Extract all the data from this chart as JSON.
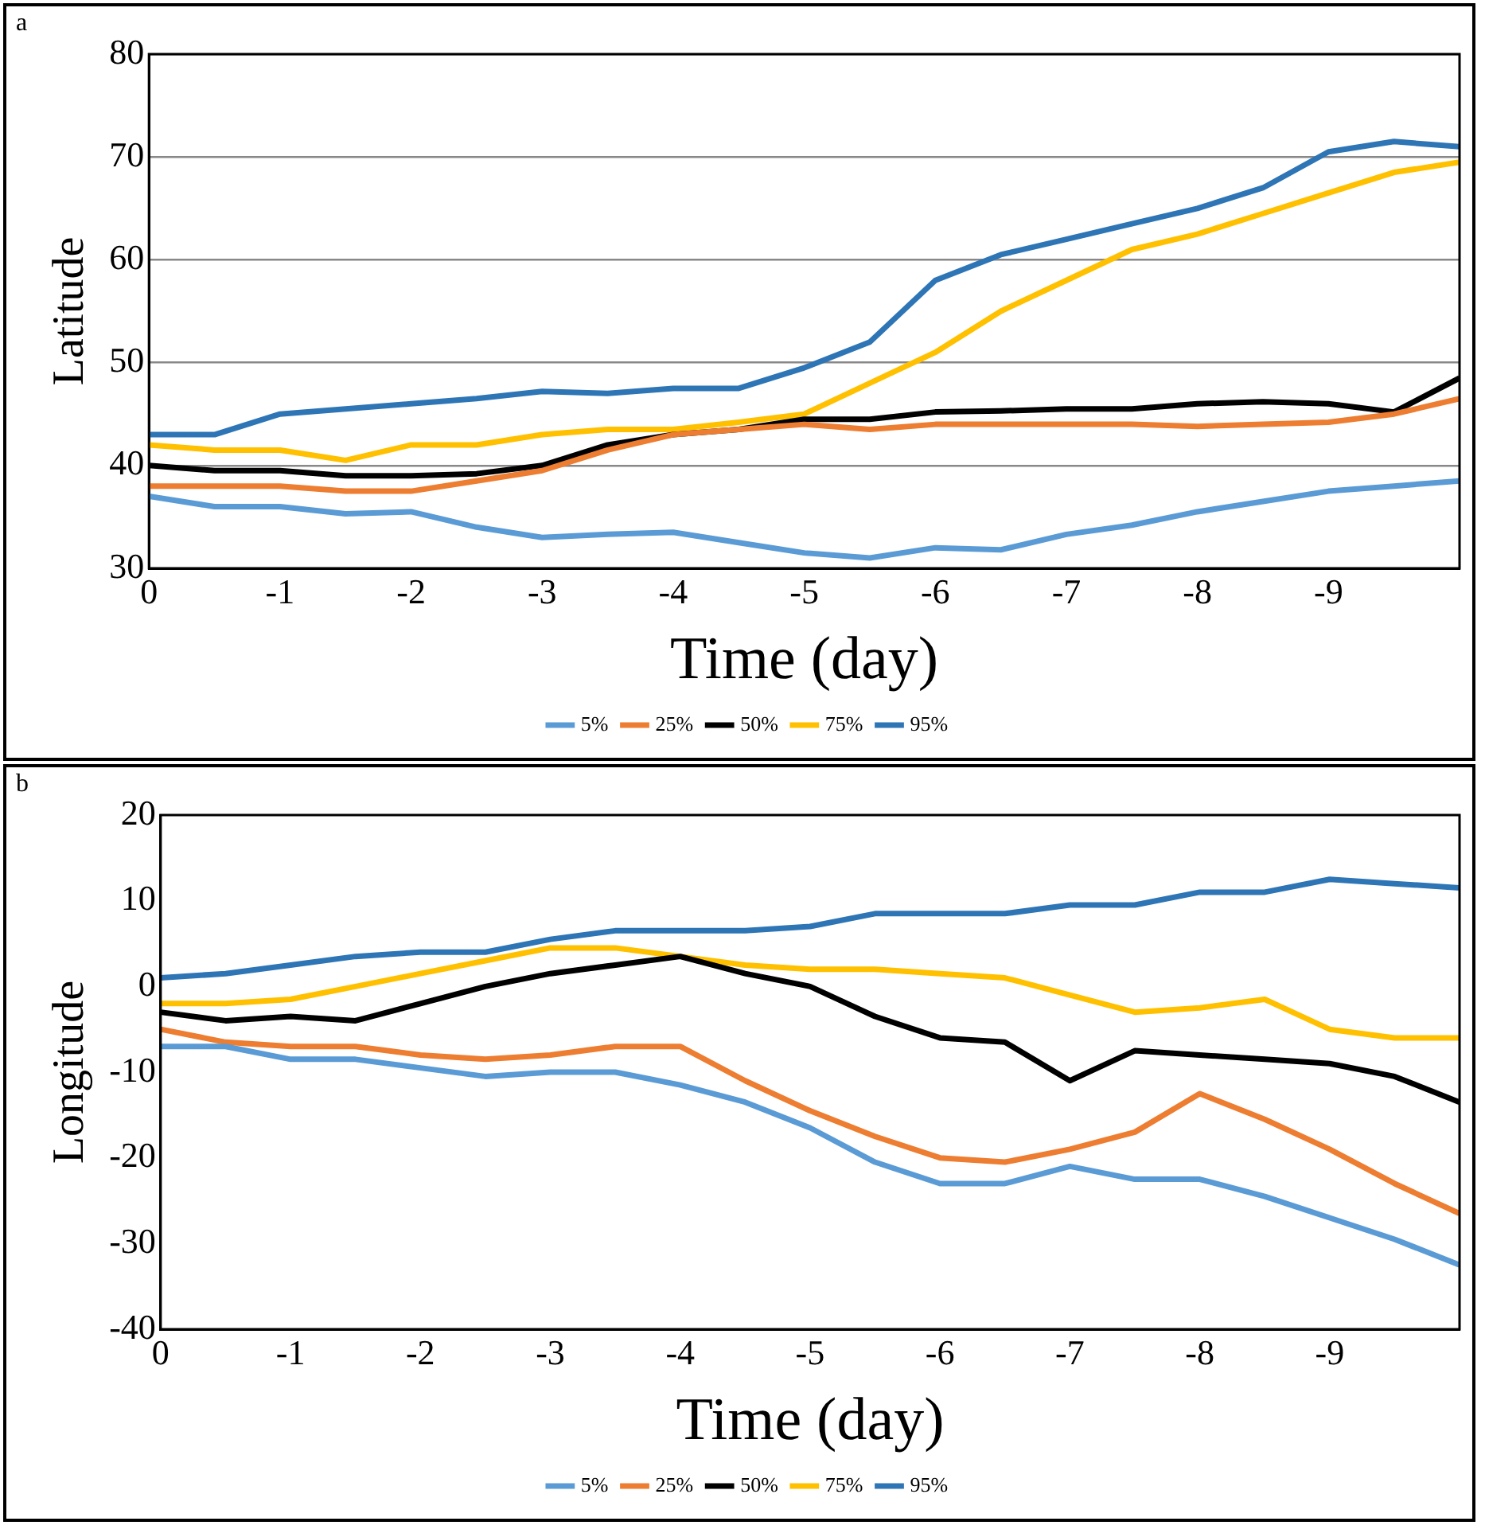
{
  "chart_data": [
    {
      "type": "line",
      "annotations": [
        "a"
      ],
      "xlabel": "Time (day)",
      "ylabel": "Latitude",
      "xlim": [
        0,
        -10
      ],
      "xticks": [
        0,
        -1,
        -2,
        -3,
        -4,
        -5,
        -6,
        -7,
        -8,
        -9
      ],
      "ylim": [
        30,
        80
      ],
      "yticks": [
        30,
        40,
        50,
        60,
        70,
        80
      ],
      "grid": "y",
      "legend": "bottom",
      "marker": "none",
      "line_style": "solid",
      "x": [
        0,
        -0.5,
        -1,
        -1.5,
        -2,
        -2.5,
        -3,
        -3.5,
        -4,
        -4.5,
        -5,
        -5.5,
        -6,
        -6.5,
        -7,
        -7.5,
        -8,
        -8.5,
        -9,
        -9.5,
        -10
      ],
      "series": [
        {
          "name": "5%",
          "color": "#5b9bd5",
          "values": [
            37,
            36,
            36,
            35.3,
            35.5,
            34,
            33,
            33.3,
            33.5,
            32.5,
            31.5,
            31,
            32,
            31.8,
            33.3,
            34.2,
            35.5,
            36.5,
            37.5,
            38,
            38.5
          ]
        },
        {
          "name": "25%",
          "color": "#ed7d31",
          "values": [
            38,
            38,
            38,
            37.5,
            37.5,
            38.5,
            39.5,
            41.5,
            43,
            43.5,
            44,
            43.5,
            44,
            44,
            44,
            44,
            43.8,
            44,
            44.2,
            45,
            46.5
          ]
        },
        {
          "name": "50%",
          "color": "#000000",
          "values": [
            40,
            39.5,
            39.5,
            39,
            39,
            39.2,
            40,
            42,
            43,
            43.5,
            44.5,
            44.5,
            45.2,
            45.3,
            45.5,
            45.5,
            46,
            46.2,
            46,
            45.2,
            48.5
          ]
        },
        {
          "name": "75%",
          "color": "#ffc000",
          "values": [
            42,
            41.5,
            41.5,
            40.5,
            42,
            42,
            43,
            43.5,
            43.5,
            44.2,
            45,
            48,
            51,
            55,
            58,
            61,
            62.5,
            64.5,
            66.5,
            68.5,
            69.5
          ]
        },
        {
          "name": "95%",
          "color": "#2e75b6",
          "values": [
            43,
            43,
            45,
            45.5,
            46,
            46.5,
            47.2,
            47,
            47.5,
            47.5,
            49.5,
            52,
            58,
            60.5,
            62,
            63.5,
            65,
            67,
            70.5,
            71.5,
            71
          ]
        }
      ]
    },
    {
      "type": "line",
      "annotations": [
        "b"
      ],
      "xlabel": "Time (day)",
      "ylabel": "Longitude",
      "xlim": [
        0,
        -10
      ],
      "xticks": [
        0,
        -1,
        -2,
        -3,
        -4,
        -5,
        -6,
        -7,
        -8,
        -9
      ],
      "ylim": [
        -40,
        20
      ],
      "yticks": [
        -40,
        -30,
        -20,
        -10,
        0,
        10,
        20
      ],
      "grid": false,
      "legend": "bottom",
      "marker": "none",
      "line_style": "solid",
      "x": [
        0,
        -0.5,
        -1,
        -1.5,
        -2,
        -2.5,
        -3,
        -3.5,
        -4,
        -4.5,
        -5,
        -5.5,
        -6,
        -6.5,
        -7,
        -7.5,
        -8,
        -8.5,
        -9,
        -9.5,
        -10
      ],
      "series": [
        {
          "name": "5%",
          "color": "#5b9bd5",
          "values": [
            -7,
            -7,
            -8.5,
            -8.5,
            -9.5,
            -10.5,
            -10,
            -10,
            -11.5,
            -13.5,
            -16.5,
            -20.5,
            -23,
            -23,
            -21,
            -22.5,
            -22.5,
            -24.5,
            -27,
            -29.5,
            -32.5
          ]
        },
        {
          "name": "25%",
          "color": "#ed7d31",
          "values": [
            -5,
            -6.5,
            -7,
            -7,
            -8,
            -8.5,
            -8,
            -7,
            -7,
            -11,
            -14.5,
            -17.5,
            -20,
            -20.5,
            -19,
            -17,
            -12.5,
            -15.5,
            -19,
            -23,
            -26.5
          ]
        },
        {
          "name": "50%",
          "color": "#000000",
          "values": [
            -3,
            -4,
            -3.5,
            -4,
            -2,
            0,
            1.5,
            2.5,
            3.5,
            1.5,
            0,
            -3.5,
            -6,
            -6.5,
            -11,
            -7.5,
            -8,
            -8.5,
            -9,
            -10.5,
            -13.5
          ]
        },
        {
          "name": "75%",
          "color": "#ffc000",
          "values": [
            -2,
            -2,
            -1.5,
            0,
            1.5,
            3,
            4.5,
            4.5,
            3.5,
            2.5,
            2,
            2,
            1.5,
            1,
            -1,
            -3,
            -2.5,
            -1.5,
            -5,
            -6,
            -6
          ]
        },
        {
          "name": "95%",
          "color": "#2e75b6",
          "values": [
            1,
            1.5,
            2.5,
            3.5,
            4,
            4,
            5.5,
            6.5,
            6.5,
            6.5,
            7,
            8.5,
            8.5,
            8.5,
            9.5,
            9.5,
            11,
            11,
            12.5,
            12,
            11.5
          ]
        }
      ]
    }
  ]
}
